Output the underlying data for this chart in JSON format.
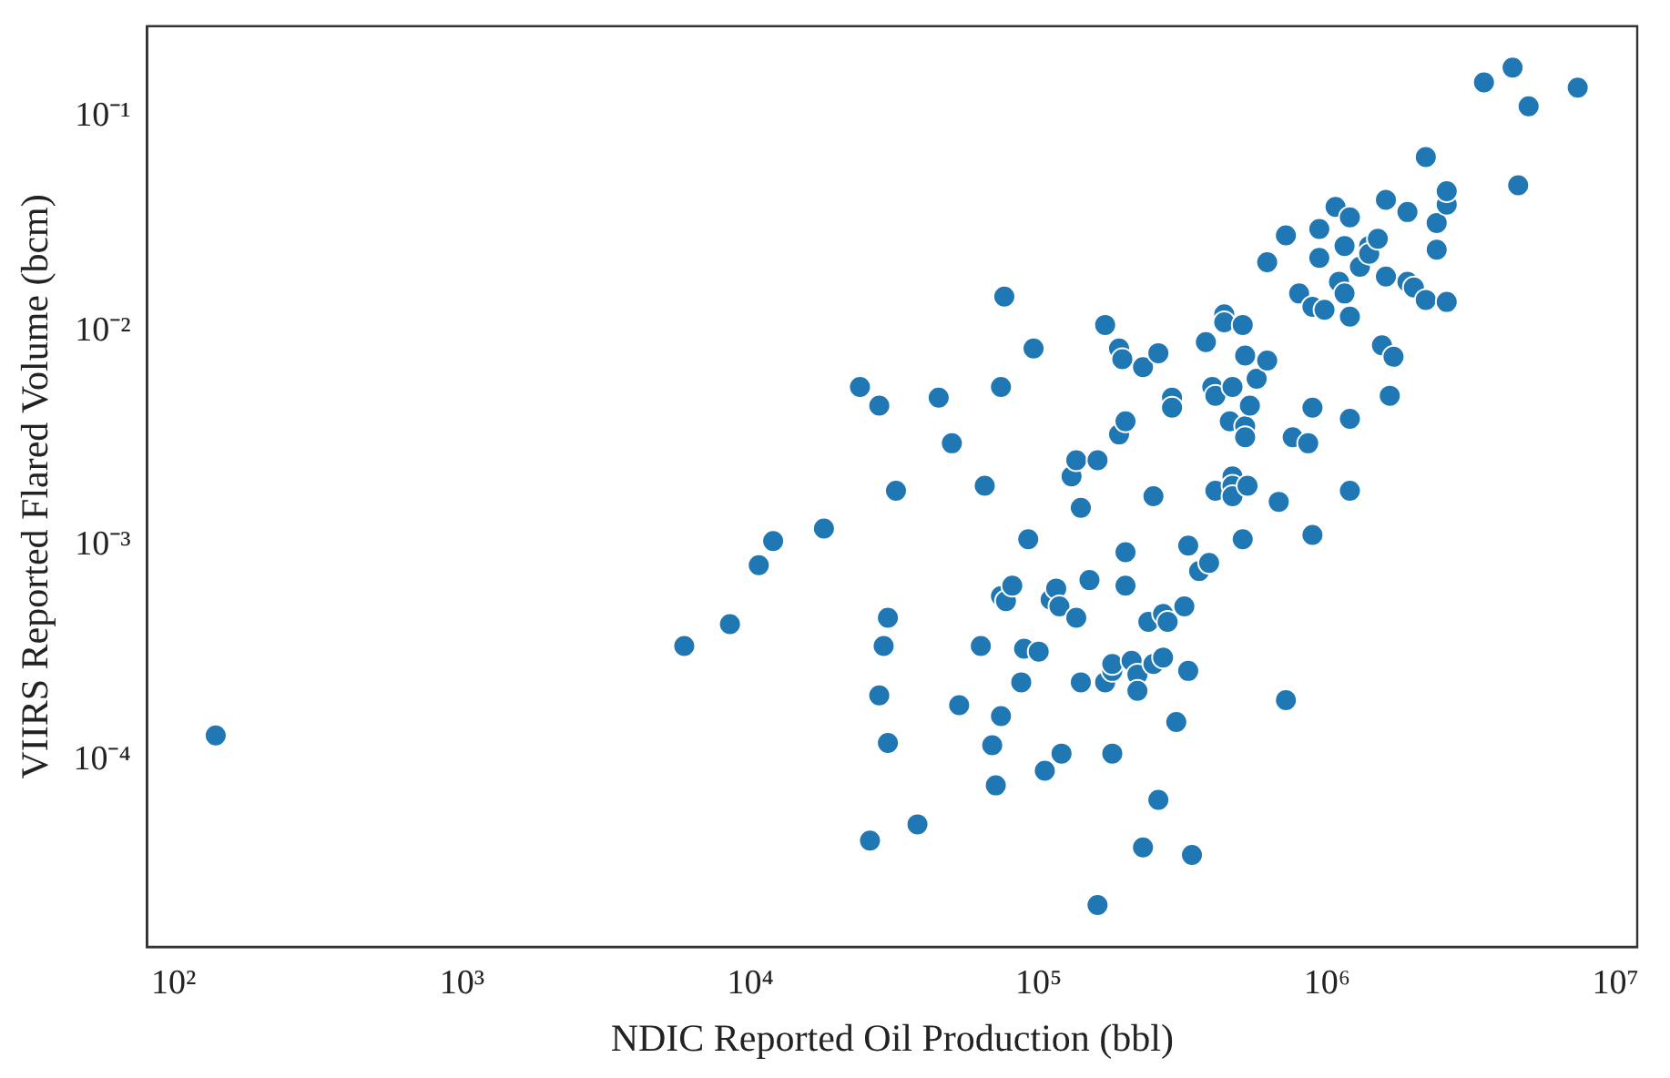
{
  "chart_data": {
    "type": "scatter",
    "xlabel": "NDIC Reported Oil Production (bbl)",
    "ylabel": "VIIRS Reported Flared Volume (bcm)",
    "log": "xy",
    "grid": false,
    "legend": false,
    "marker": "circle",
    "xlim": [
      81,
      11900000
    ],
    "ylim": [
      1.34e-05,
      0.265
    ],
    "xticks": [
      {
        "value": 100,
        "label": "10²"
      },
      {
        "value": 1000,
        "label": "10³"
      },
      {
        "value": 10000,
        "label": "10⁴"
      },
      {
        "value": 100000,
        "label": "10⁵"
      },
      {
        "value": 1000000,
        "label": "10⁶"
      },
      {
        "value": 10000000,
        "label": "10⁷"
      }
    ],
    "yticks": [
      {
        "value": 0.0001,
        "label": "10⁻⁴"
      },
      {
        "value": 0.001,
        "label": "10⁻³"
      },
      {
        "value": 0.01,
        "label": "10⁻²"
      },
      {
        "value": 0.1,
        "label": "10⁻¹"
      }
    ],
    "series": [
      {
        "color": "#1f77b4",
        "x": [
          140,
          5900,
          8500,
          10700,
          12000,
          18000,
          24000,
          28000,
          32000,
          30000,
          29000,
          28000,
          30000,
          26000,
          38000,
          45000,
          50000,
          53000,
          63000,
          65000,
          74000,
          76000,
          69000,
          71000,
          74000,
          74000,
          77000,
          81000,
          92000,
          96000,
          87000,
          89000,
          100000,
          105000,
          110000,
          115000,
          118000,
          120000,
          130000,
          135000,
          135000,
          140000,
          140000,
          150000,
          160000,
          160000,
          170000,
          170000,
          180000,
          180000,
          180000,
          190000,
          190000,
          195000,
          200000,
          200000,
          200000,
          210000,
          220000,
          220000,
          230000,
          230000,
          240000,
          250000,
          260000,
          250000,
          260000,
          270000,
          270000,
          280000,
          290000,
          290000,
          300000,
          320000,
          330000,
          330000,
          340000,
          360000,
          380000,
          390000,
          400000,
          410000,
          410000,
          440000,
          440000,
          470000,
          460000,
          470000,
          470000,
          470000,
          510000,
          520000,
          520000,
          520000,
          540000,
          530000,
          510000,
          570000,
          620000,
          620000,
          680000,
          720000,
          720000,
          760000,
          800000,
          860000,
          890000,
          890000,
          890000,
          940000,
          940000,
          980000,
          1070000,
          1100000,
          1150000,
          1150000,
          1200000,
          1200000,
          1200000,
          1200000,
          1300000,
          1400000,
          1400000,
          1500000,
          1550000,
          1600000,
          1600000,
          1650000,
          1700000,
          1900000,
          1900000,
          2000000,
          2200000,
          2200000,
          2400000,
          2400000,
          2600000,
          2600000,
          2600000,
          3500000,
          4400000,
          4600000,
          5000000,
          7400000
        ],
        "values": [
          0.00013,
          0.00034,
          0.00043,
          0.00081,
          0.00105,
          0.0012,
          0.0055,
          0.0045,
          0.0018,
          0.00046,
          0.00034,
          0.0002,
          0.00012,
          4.2e-05,
          5e-05,
          0.0049,
          0.003,
          0.00018,
          0.00034,
          0.0019,
          0.0055,
          0.0145,
          0.000117,
          7.6e-05,
          0.00016,
          0.00058,
          0.00055,
          0.00065,
          0.00107,
          0.0083,
          0.00023,
          0.00033,
          0.00032,
          8.9e-05,
          0.00056,
          0.00063,
          0.00052,
          0.000107,
          0.0021,
          0.0025,
          0.00046,
          0.00023,
          0.0015,
          0.00069,
          0.0025,
          2.1e-05,
          0.0107,
          0.00023,
          0.00026,
          0.00028,
          0.000107,
          0.0033,
          0.0083,
          0.0074,
          0.0038,
          0.00093,
          0.00065,
          0.00029,
          0.00025,
          0.00021,
          0.0068,
          3.9e-05,
          0.00044,
          0.00028,
          0.0079,
          0.0017,
          6.5e-05,
          0.00048,
          0.0003,
          0.00044,
          0.0049,
          0.0044,
          0.00015,
          0.00052,
          0.001,
          0.00026,
          3.6e-05,
          0.00076,
          0.0089,
          0.00083,
          0.0055,
          0.005,
          0.0018,
          0.012,
          0.011,
          0.0055,
          0.0038,
          0.0021,
          0.0019,
          0.0017,
          0.0107,
          0.0077,
          0.0036,
          0.0032,
          0.0045,
          0.0019,
          0.00107,
          0.006,
          0.0073,
          0.021,
          0.0016,
          0.028,
          0.00019,
          0.0032,
          0.015,
          0.003,
          0.0044,
          0.00112,
          0.013,
          0.03,
          0.022,
          0.0126,
          0.038,
          0.017,
          0.025,
          0.015,
          0.0039,
          0.0018,
          0.0117,
          0.034,
          0.02,
          0.025,
          0.023,
          0.027,
          0.0086,
          0.018,
          0.041,
          0.005,
          0.0076,
          0.036,
          0.017,
          0.016,
          0.014,
          0.065,
          0.024,
          0.032,
          0.0137,
          0.039,
          0.045,
          0.145,
          0.17,
          0.048,
          0.112,
          0.137
        ]
      }
    ]
  }
}
